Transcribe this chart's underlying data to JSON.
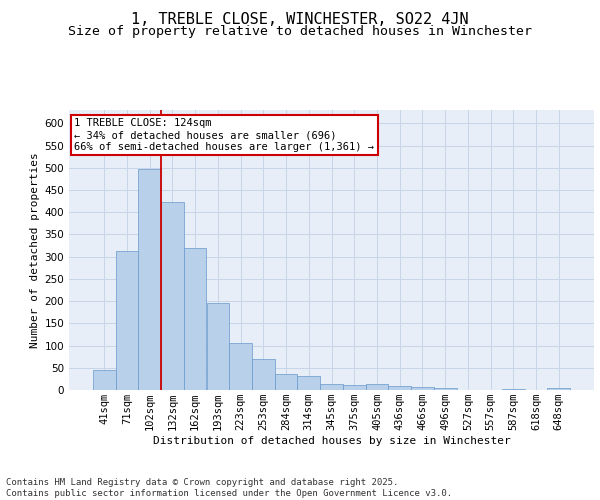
{
  "title": "1, TREBLE CLOSE, WINCHESTER, SO22 4JN",
  "subtitle": "Size of property relative to detached houses in Winchester",
  "xlabel": "Distribution of detached houses by size in Winchester",
  "ylabel": "Number of detached properties",
  "categories": [
    "41sqm",
    "71sqm",
    "102sqm",
    "132sqm",
    "162sqm",
    "193sqm",
    "223sqm",
    "253sqm",
    "284sqm",
    "314sqm",
    "345sqm",
    "375sqm",
    "405sqm",
    "436sqm",
    "466sqm",
    "496sqm",
    "527sqm",
    "557sqm",
    "587sqm",
    "618sqm",
    "648sqm"
  ],
  "values": [
    45,
    313,
    498,
    424,
    320,
    195,
    105,
    70,
    37,
    32,
    14,
    12,
    14,
    9,
    6,
    4,
    0,
    0,
    3,
    0,
    4
  ],
  "bar_color": "#b8d0ea",
  "bar_edge_color": "#6699cc",
  "grid_color": "#c8d4e8",
  "background_color": "#e8eef8",
  "vline_color": "#cc0000",
  "annotation_text": "1 TREBLE CLOSE: 124sqm\n← 34% of detached houses are smaller (696)\n66% of semi-detached houses are larger (1,361) →",
  "annotation_box_color": "#ffffff",
  "annotation_box_edge": "#cc0000",
  "footer": "Contains HM Land Registry data © Crown copyright and database right 2025.\nContains public sector information licensed under the Open Government Licence v3.0.",
  "ylim": [
    0,
    630
  ],
  "yticks": [
    0,
    50,
    100,
    150,
    200,
    250,
    300,
    350,
    400,
    450,
    500,
    550,
    600
  ],
  "title_fontsize": 11,
  "subtitle_fontsize": 9.5,
  "axis_label_fontsize": 8,
  "tick_fontsize": 7.5,
  "footer_fontsize": 6.5,
  "annotation_fontsize": 7.5
}
